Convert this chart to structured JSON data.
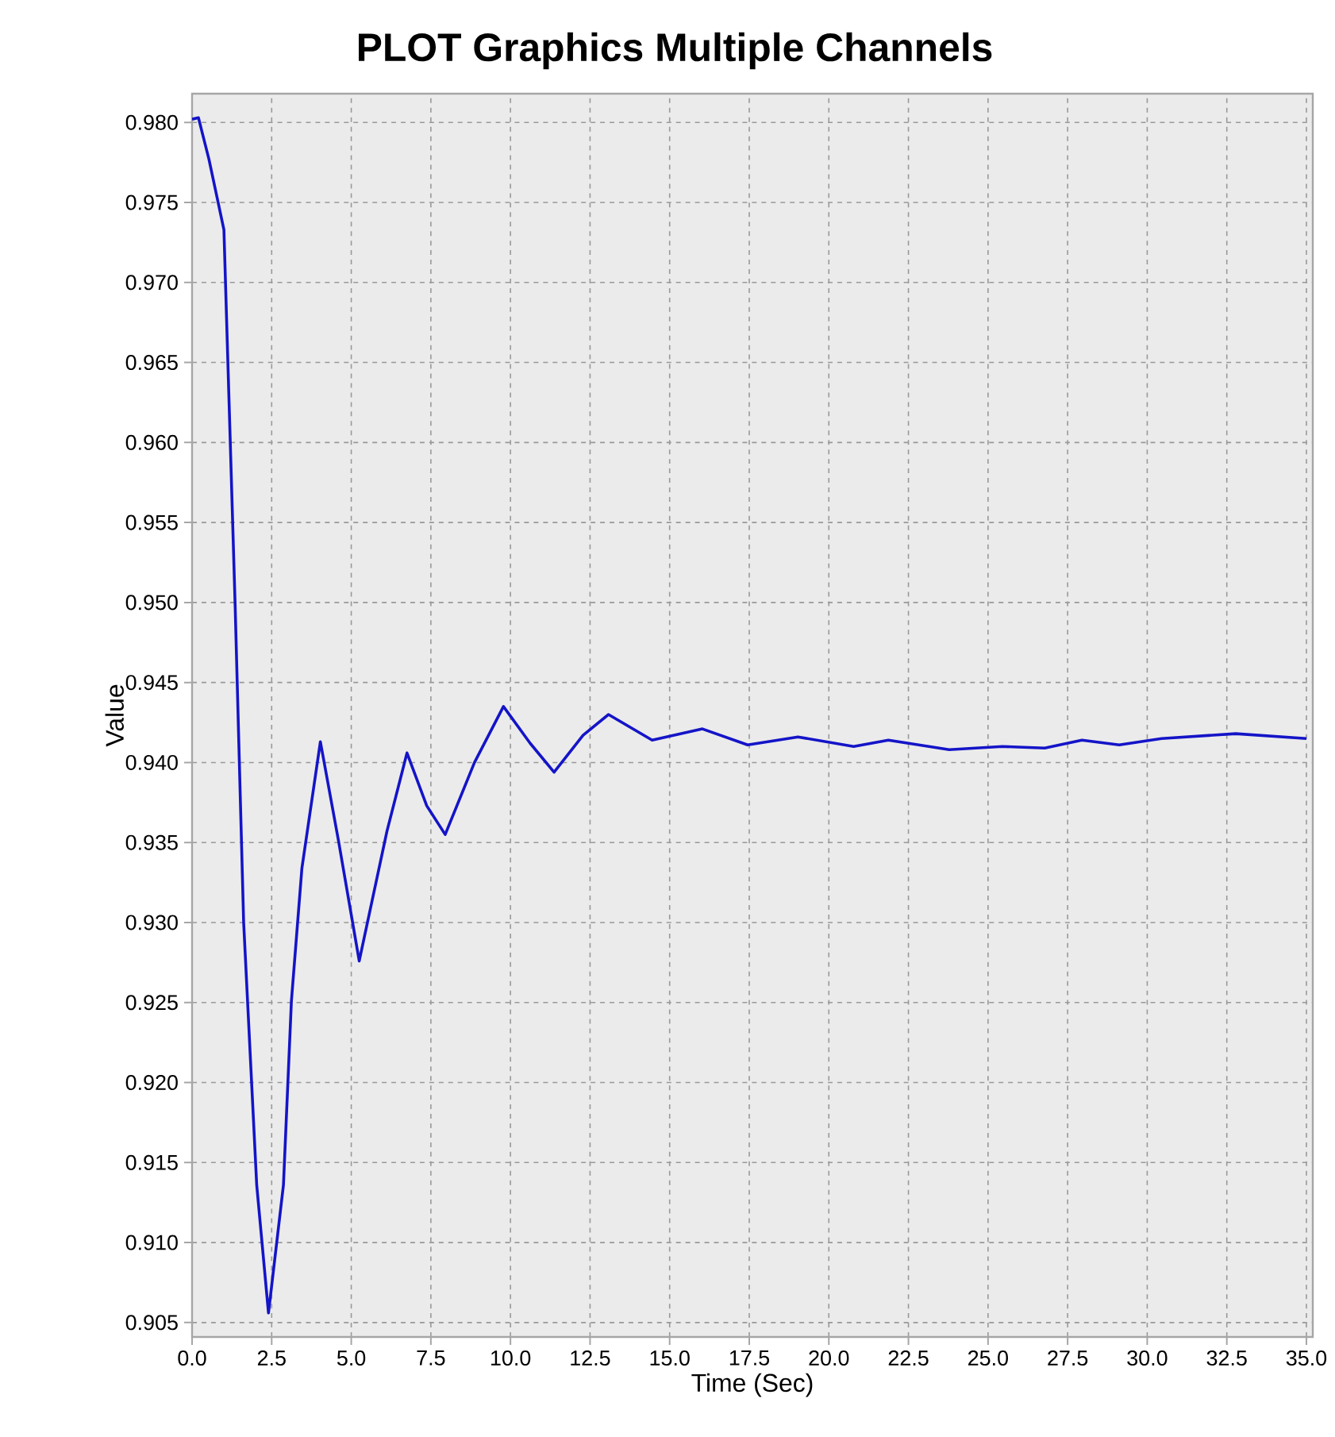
{
  "chart_data": {
    "type": "line",
    "title": "PLOT Graphics Multiple Channels",
    "xlabel": "Time (Sec)",
    "ylabel": "Value",
    "x": [
      0,
      0.2,
      0.53,
      1.0,
      1.35,
      1.62,
      2.03,
      2.4,
      2.87,
      3.12,
      3.45,
      4.03,
      4.6,
      5.25,
      6.12,
      6.75,
      7.37,
      7.95,
      8.87,
      9.78,
      10.62,
      11.37,
      12.28,
      13.08,
      14.45,
      16.03,
      17.45,
      19.03,
      20.78,
      21.87,
      23.78,
      25.45,
      26.78,
      27.95,
      29.12,
      30.45,
      32.78,
      35.0
    ],
    "series": [
      {
        "color": "#1414c8",
        "values": [
          0.9802,
          0.9803,
          0.9777,
          0.9733,
          0.95,
          0.93,
          0.9136,
          0.9056,
          0.9136,
          0.9251,
          0.9334,
          0.9413,
          0.9351,
          0.9276,
          0.9357,
          0.9406,
          0.9373,
          0.9355,
          0.94,
          0.9435,
          0.9412,
          0.9394,
          0.9417,
          0.943,
          0.9414,
          0.9421,
          0.9411,
          0.9416,
          0.941,
          0.9414,
          0.9408,
          0.941,
          0.9409,
          0.9414,
          0.9411,
          0.9415,
          0.9418,
          0.9415
        ]
      }
    ],
    "xlim": [
      0,
      35.2
    ],
    "ylim": [
      0.9041,
      0.9818
    ],
    "xticks": [
      {
        "value": 0,
        "label": "0.0"
      },
      {
        "value": 2.5,
        "label": "2.5"
      },
      {
        "value": 5,
        "label": "5.0"
      },
      {
        "value": 7.5,
        "label": "7.5"
      },
      {
        "value": 10,
        "label": "10.0"
      },
      {
        "value": 12.5,
        "label": "12.5"
      },
      {
        "value": 15,
        "label": "15.0"
      },
      {
        "value": 17.5,
        "label": "17.5"
      },
      {
        "value": 20,
        "label": "20.0"
      },
      {
        "value": 22.5,
        "label": "22.5"
      },
      {
        "value": 25,
        "label": "25.0"
      },
      {
        "value": 27.5,
        "label": "27.5"
      },
      {
        "value": 30,
        "label": "30.0"
      },
      {
        "value": 32.5,
        "label": "32.5"
      },
      {
        "value": 35,
        "label": "35.0"
      }
    ],
    "yticks": [
      0.905,
      {
        "value": 0.91,
        "label": "0.910"
      },
      0.915,
      {
        "value": 0.92,
        "label": "0.920"
      },
      0.925,
      {
        "value": 0.93,
        "label": "0.930"
      },
      0.935,
      {
        "value": 0.94,
        "label": "0.940"
      },
      0.945,
      {
        "value": 0.95,
        "label": "0.950"
      },
      0.955,
      {
        "value": 0.96,
        "label": "0.960"
      },
      0.965,
      {
        "value": 0.97,
        "label": "0.970"
      },
      0.975,
      {
        "value": 0.98,
        "label": "0.980"
      }
    ],
    "grid": true,
    "marker": "none",
    "line_style": "solid"
  }
}
